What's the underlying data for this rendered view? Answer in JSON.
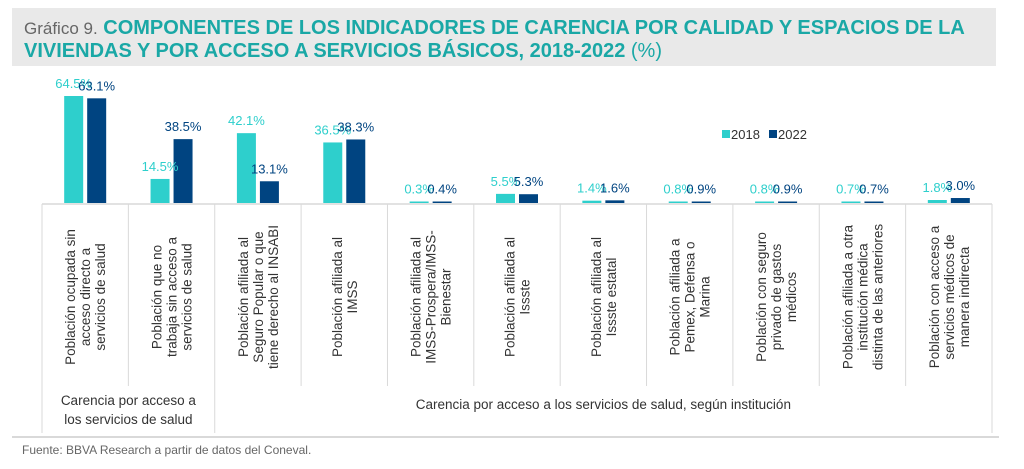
{
  "header": {
    "label": "Gráfico 9.",
    "title": "COMPONENTES DE LOS INDICADORES DE CARENCIA POR CALIDAD Y ESPACIOS DE LA VIVIENDAS Y POR ACCESO A SERVICIOS BÁSICOS, 2018-2022",
    "unit": "(%)"
  },
  "source": "Fuente: BBVA Research a partir de datos del Coneval.",
  "colors": {
    "s2018": "#2ecfcc",
    "s2022": "#004481",
    "grid": "#d9d9d9",
    "text": "#333333"
  },
  "chart_data": {
    "type": "bar",
    "title": "COMPONENTES DE LOS INDICADORES DE CARENCIA POR CALIDAD Y ESPACIOS DE LA VIVIENDAS Y POR ACCESO A SERVICIOS BÁSICOS, 2018-2022 (%)",
    "xlabel": "",
    "ylabel": "%",
    "ylim": [
      0,
      70
    ],
    "grid": false,
    "legend_position": "top-right",
    "categories": [
      [
        "Población ocupada sin",
        "acceso directo a",
        "servicios de salud"
      ],
      [
        "Población que no",
        "trabaja sin acceso a",
        "servicios de salud"
      ],
      [
        "Población afiliada al",
        "Seguro Popular o que",
        "tiene derecho al INSABI"
      ],
      [
        "Población afiliada al",
        "IMSS"
      ],
      [
        "Población afiliada al",
        "IMSS-Prospera/IMSS-",
        "Bienestar"
      ],
      [
        "Población afiliada al",
        "Issste"
      ],
      [
        "Población afiliada al",
        "Issste estatal"
      ],
      [
        "Población afiliada a",
        "Pemex, Defensa o",
        "Marina"
      ],
      [
        "Población con seguro",
        "privado de gastos",
        "médicos"
      ],
      [
        "Población afiliada a otra",
        "institución médica",
        "distinta de las anteriores"
      ],
      [
        "Población con acceso a",
        "servicios médicos de",
        "manera indirecta"
      ]
    ],
    "series": [
      {
        "name": "2018",
        "values": [
          64.5,
          14.5,
          42.1,
          36.5,
          0.3,
          5.5,
          1.4,
          0.8,
          0.8,
          0.7,
          1.8
        ]
      },
      {
        "name": "2022",
        "values": [
          63.1,
          38.5,
          13.1,
          38.3,
          0.4,
          5.3,
          1.6,
          0.9,
          0.9,
          0.7,
          3.0
        ]
      }
    ],
    "groups": [
      {
        "label": [
          "Carencia por acceso a",
          "los servicios de salud"
        ],
        "span": [
          0,
          1
        ]
      },
      {
        "label": [
          "Carencia por acceso a los servicios de salud, según institución"
        ],
        "span": [
          2,
          10
        ]
      }
    ]
  }
}
